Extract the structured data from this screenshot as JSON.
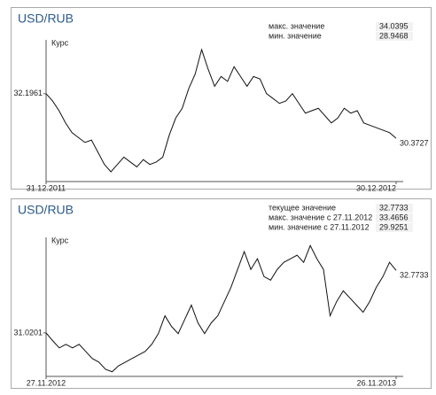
{
  "chart_data": [
    {
      "type": "line",
      "title": "USD/RUB",
      "y_label": "Курс",
      "annotations": [
        {
          "label": "макс. значение",
          "value": 34.0395,
          "color": "#3aaa35"
        },
        {
          "label": "мин. значение",
          "value": 28.9468,
          "color": "#e0302a"
        }
      ],
      "series": [
        {
          "color": "#111111",
          "values": [
            32.1961,
            31.9,
            31.5,
            31.0,
            30.6,
            30.4,
            30.2,
            30.3,
            29.8,
            29.3,
            29.0,
            29.3,
            29.6,
            29.4,
            29.2,
            29.5,
            29.3,
            29.4,
            29.6,
            30.5,
            31.2,
            31.6,
            32.4,
            33.0,
            34.0,
            33.2,
            32.5,
            32.9,
            32.7,
            33.3,
            32.9,
            32.5,
            32.9,
            32.8,
            32.2,
            32.0,
            31.8,
            31.9,
            32.2,
            31.8,
            31.4,
            31.5,
            31.6,
            31.3,
            31.0,
            31.2,
            31.6,
            31.4,
            31.5,
            31.0,
            30.9,
            30.8,
            30.7,
            30.6,
            30.3727
          ]
        }
      ],
      "xlim": [
        0,
        54
      ],
      "xticks": [
        {
          "value": 0,
          "label": "31.12.2011"
        },
        {
          "value": 54,
          "label": "30.12.2012"
        }
      ],
      "ylim": [
        28.6,
        34.4
      ],
      "yticks": [
        32.1961
      ]
    },
    {
      "type": "line",
      "title": "USD/RUB",
      "y_label": "Курс",
      "annotations": [
        {
          "label": "текущее значение",
          "value": 32.7733,
          "color": "#3a6fb0"
        },
        {
          "label": "макс. значение с 27.11.2012",
          "value": 33.4656,
          "color": "#3aaa35"
        },
        {
          "label": "мин. значение с  27.11.2012",
          "value": 29.9251,
          "color": "#e0302a"
        }
      ],
      "series": [
        {
          "color": "#111111",
          "values": [
            31.0201,
            30.8,
            30.6,
            30.7,
            30.6,
            30.7,
            30.5,
            30.3,
            30.2,
            30.0,
            29.93,
            30.1,
            30.2,
            30.3,
            30.4,
            30.5,
            30.7,
            31.0,
            31.5,
            31.2,
            31.0,
            31.4,
            31.8,
            31.3,
            31.0,
            31.3,
            31.5,
            31.9,
            32.3,
            32.8,
            33.3,
            32.8,
            33.1,
            32.6,
            32.5,
            32.8,
            33.0,
            33.1,
            33.2,
            33.0,
            33.47,
            33.1,
            32.8,
            31.5,
            31.9,
            32.2,
            32.0,
            31.8,
            31.6,
            31.9,
            32.3,
            32.6,
            33.0,
            32.7733
          ]
        }
      ],
      "xlim": [
        0,
        53
      ],
      "xticks": [
        {
          "value": 0,
          "label": "27.11.2012"
        },
        {
          "value": 53,
          "label": "26.11.2013"
        }
      ],
      "ylim": [
        29.8,
        33.7
      ],
      "yticks": [
        31.0201
      ]
    }
  ]
}
